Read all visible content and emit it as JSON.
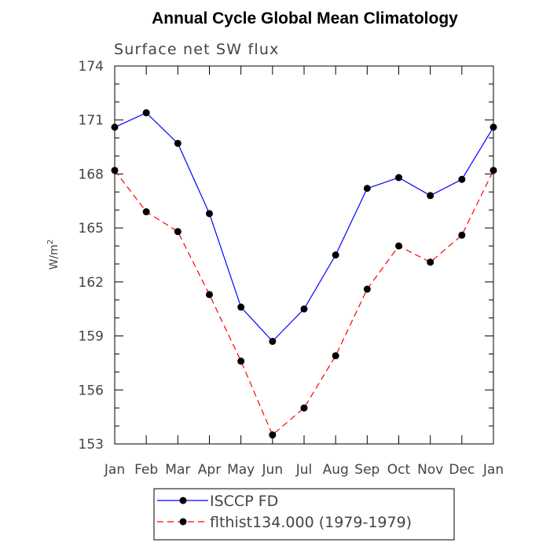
{
  "chart_data": {
    "type": "line",
    "title": "Annual Cycle Global Mean Climatology",
    "subtitle": "Surface net SW flux",
    "ylabel": "W/m",
    "ylabel_superscript": "2",
    "xlabel": "",
    "categories": [
      "Jan",
      "Feb",
      "Mar",
      "Apr",
      "May",
      "Jun",
      "Jul",
      "Aug",
      "Sep",
      "Oct",
      "Nov",
      "Dec",
      "Jan"
    ],
    "ylim": [
      153,
      174
    ],
    "yticks": [
      153,
      156,
      159,
      162,
      165,
      168,
      171,
      174
    ],
    "grid": false,
    "legend_position": "bottom-center",
    "series": [
      {
        "name": "ISCCP FD",
        "color": "#0000ff",
        "line_style": "solid",
        "marker": "filled-circle",
        "values": [
          170.6,
          171.4,
          169.7,
          165.8,
          160.6,
          158.7,
          160.5,
          163.5,
          167.2,
          167.8,
          166.8,
          167.7,
          170.6
        ]
      },
      {
        "name": "flthist134.000 (1979-1979)",
        "color": "#ff0000",
        "line_style": "dashed",
        "marker": "filled-circle",
        "values": [
          168.2,
          165.9,
          164.8,
          161.3,
          157.6,
          153.5,
          155.0,
          157.9,
          161.6,
          164.0,
          163.1,
          164.6,
          168.2
        ]
      }
    ]
  }
}
